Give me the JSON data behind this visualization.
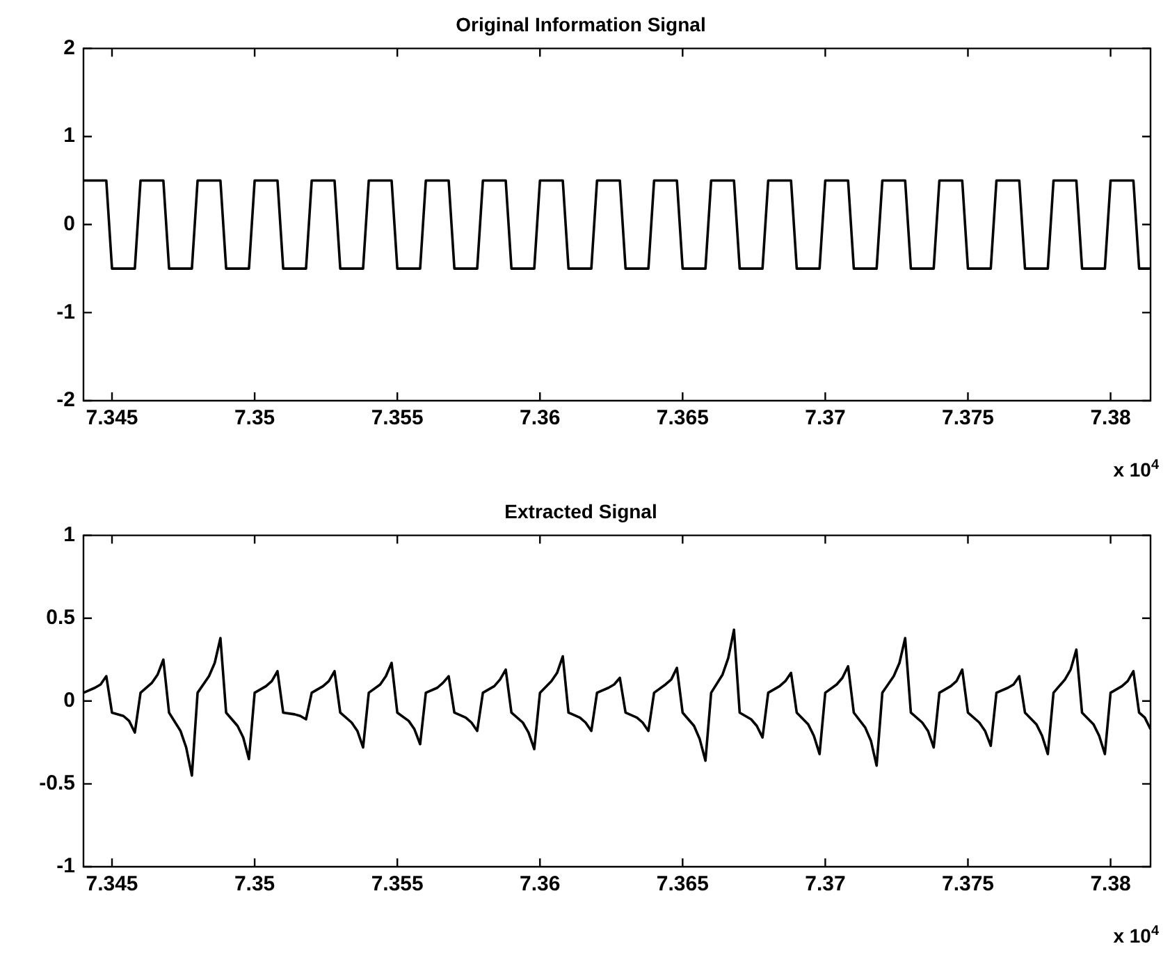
{
  "chart_data": [
    {
      "type": "line",
      "title": "Original Information Signal",
      "annotations": [
        "x 10$^{4}$"
      ],
      "grid": false,
      "xlim": [
        7.344,
        7.3814
      ],
      "xticks": [
        7.345,
        7.35,
        7.355,
        7.36,
        7.365,
        7.37,
        7.375,
        7.38
      ],
      "ylim": [
        -2,
        2
      ],
      "yticks": [
        -2,
        -1,
        0,
        1,
        2
      ],
      "series": [
        {
          "color": "#000000",
          "x": [
            7.344,
            7.3448,
            7.345,
            7.3458,
            7.346,
            7.3468,
            7.347,
            7.3478,
            7.348,
            7.3488,
            7.349,
            7.3498,
            7.35,
            7.3508,
            7.351,
            7.3518,
            7.352,
            7.3528,
            7.353,
            7.3538,
            7.354,
            7.3548,
            7.355,
            7.3558,
            7.356,
            7.3568,
            7.357,
            7.3578,
            7.358,
            7.3588,
            7.359,
            7.3598,
            7.36,
            7.3608,
            7.361,
            7.3618,
            7.362,
            7.3628,
            7.363,
            7.3638,
            7.364,
            7.3648,
            7.365,
            7.3658,
            7.366,
            7.3668,
            7.367,
            7.3678,
            7.368,
            7.3688,
            7.369,
            7.3698,
            7.37,
            7.3708,
            7.371,
            7.3718,
            7.372,
            7.3728,
            7.373,
            7.3738,
            7.374,
            7.3748,
            7.375,
            7.3758,
            7.376,
            7.3768,
            7.377,
            7.3778,
            7.378,
            7.3788,
            7.379,
            7.3798,
            7.38,
            7.3808,
            7.381,
            7.3814
          ],
          "values": [
            0.5,
            0.5,
            -0.5,
            -0.5,
            0.5,
            0.5,
            -0.5,
            -0.5,
            0.5,
            0.5,
            -0.5,
            -0.5,
            0.5,
            0.5,
            -0.5,
            -0.5,
            0.5,
            0.5,
            -0.5,
            -0.5,
            0.5,
            0.5,
            -0.5,
            -0.5,
            0.5,
            0.5,
            -0.5,
            -0.5,
            0.5,
            0.5,
            -0.5,
            -0.5,
            0.5,
            0.5,
            -0.5,
            -0.5,
            0.5,
            0.5,
            -0.5,
            -0.5,
            0.5,
            0.5,
            -0.5,
            -0.5,
            0.5,
            0.5,
            -0.5,
            -0.5,
            0.5,
            0.5,
            -0.5,
            -0.5,
            0.5,
            0.5,
            -0.5,
            -0.5,
            0.5,
            0.5,
            -0.5,
            -0.5,
            0.5,
            0.5,
            -0.5,
            -0.5,
            0.5,
            0.5,
            -0.5,
            -0.5,
            0.5,
            0.5,
            -0.5,
            -0.5,
            0.5,
            0.5,
            -0.5,
            -0.5
          ]
        }
      ]
    },
    {
      "type": "line",
      "title": "Extracted Signal",
      "annotations": [
        "x 10$^{4}$"
      ],
      "grid": false,
      "xlim": [
        7.344,
        7.3814
      ],
      "xticks": [
        7.345,
        7.35,
        7.355,
        7.36,
        7.365,
        7.37,
        7.375,
        7.38
      ],
      "ylim": [
        -1,
        1
      ],
      "yticks": [
        -1,
        -0.5,
        0,
        0.5,
        1
      ],
      "series": [
        {
          "color": "#000000",
          "x": [
            7.344,
            7.3444,
            7.3446,
            7.3448,
            7.345,
            7.3454,
            7.3456,
            7.3458,
            7.346,
            7.3464,
            7.3466,
            7.3468,
            7.347,
            7.3474,
            7.3476,
            7.3478,
            7.348,
            7.3484,
            7.3486,
            7.3488,
            7.349,
            7.3494,
            7.3496,
            7.3498,
            7.35,
            7.3504,
            7.3506,
            7.3508,
            7.351,
            7.3514,
            7.3516,
            7.3518,
            7.352,
            7.3524,
            7.3526,
            7.3528,
            7.353,
            7.3534,
            7.3536,
            7.3538,
            7.354,
            7.3544,
            7.3546,
            7.3548,
            7.355,
            7.3554,
            7.3556,
            7.3558,
            7.356,
            7.3564,
            7.3566,
            7.3568,
            7.357,
            7.3574,
            7.3576,
            7.3578,
            7.358,
            7.3584,
            7.3586,
            7.3588,
            7.359,
            7.3594,
            7.3596,
            7.3598,
            7.36,
            7.3604,
            7.3606,
            7.3608,
            7.361,
            7.3614,
            7.3616,
            7.3618,
            7.362,
            7.3624,
            7.3626,
            7.3628,
            7.363,
            7.3634,
            7.3636,
            7.3638,
            7.364,
            7.3644,
            7.3646,
            7.3648,
            7.365,
            7.3654,
            7.3656,
            7.3658,
            7.366,
            7.3664,
            7.3666,
            7.3668,
            7.367,
            7.3674,
            7.3676,
            7.3678,
            7.368,
            7.3684,
            7.3686,
            7.3688,
            7.369,
            7.3694,
            7.3696,
            7.3698,
            7.37,
            7.3704,
            7.3706,
            7.3708,
            7.371,
            7.3714,
            7.3716,
            7.3718,
            7.372,
            7.3724,
            7.3726,
            7.3728,
            7.373,
            7.3734,
            7.3736,
            7.3738,
            7.374,
            7.3744,
            7.3746,
            7.3748,
            7.375,
            7.3754,
            7.3756,
            7.3758,
            7.376,
            7.3764,
            7.3766,
            7.3768,
            7.377,
            7.3774,
            7.3776,
            7.3778,
            7.378,
            7.3784,
            7.3786,
            7.3788,
            7.379,
            7.3794,
            7.3796,
            7.3798,
            7.38,
            7.3804,
            7.3806,
            7.3808,
            7.381,
            7.3812,
            7.3814
          ],
          "values": [
            0.05,
            0.08,
            0.1,
            0.15,
            -0.07,
            -0.09,
            -0.12,
            -0.19,
            0.05,
            0.11,
            0.16,
            0.25,
            -0.07,
            -0.18,
            -0.28,
            -0.45,
            0.05,
            0.15,
            0.23,
            0.38,
            -0.07,
            -0.15,
            -0.22,
            -0.35,
            0.05,
            0.09,
            0.12,
            0.18,
            -0.07,
            -0.08,
            -0.09,
            -0.11,
            0.05,
            0.09,
            0.12,
            0.18,
            -0.07,
            -0.13,
            -0.18,
            -0.28,
            0.05,
            0.1,
            0.15,
            0.23,
            -0.07,
            -0.12,
            -0.17,
            -0.26,
            0.05,
            0.08,
            0.11,
            0.15,
            -0.07,
            -0.1,
            -0.13,
            -0.18,
            0.05,
            0.09,
            0.13,
            0.19,
            -0.07,
            -0.13,
            -0.19,
            -0.29,
            0.05,
            0.12,
            0.17,
            0.27,
            -0.07,
            -0.1,
            -0.13,
            -0.18,
            0.05,
            0.08,
            0.1,
            0.14,
            -0.07,
            -0.1,
            -0.13,
            -0.18,
            0.05,
            0.1,
            0.13,
            0.2,
            -0.07,
            -0.15,
            -0.23,
            -0.36,
            0.05,
            0.16,
            0.26,
            0.43,
            -0.07,
            -0.11,
            -0.15,
            -0.22,
            0.05,
            0.09,
            0.12,
            0.17,
            -0.07,
            -0.14,
            -0.21,
            -0.32,
            0.05,
            0.1,
            0.14,
            0.21,
            -0.07,
            -0.16,
            -0.24,
            -0.39,
            0.05,
            0.15,
            0.23,
            0.38,
            -0.07,
            -0.13,
            -0.18,
            -0.28,
            0.05,
            0.09,
            0.12,
            0.19,
            -0.07,
            -0.13,
            -0.18,
            -0.27,
            0.05,
            0.08,
            0.1,
            0.15,
            -0.07,
            -0.14,
            -0.21,
            -0.32,
            0.05,
            0.13,
            0.19,
            0.31,
            -0.07,
            -0.14,
            -0.21,
            -0.32,
            0.05,
            0.09,
            0.12,
            0.18,
            -0.07,
            -0.1,
            -0.17
          ]
        }
      ]
    }
  ]
}
